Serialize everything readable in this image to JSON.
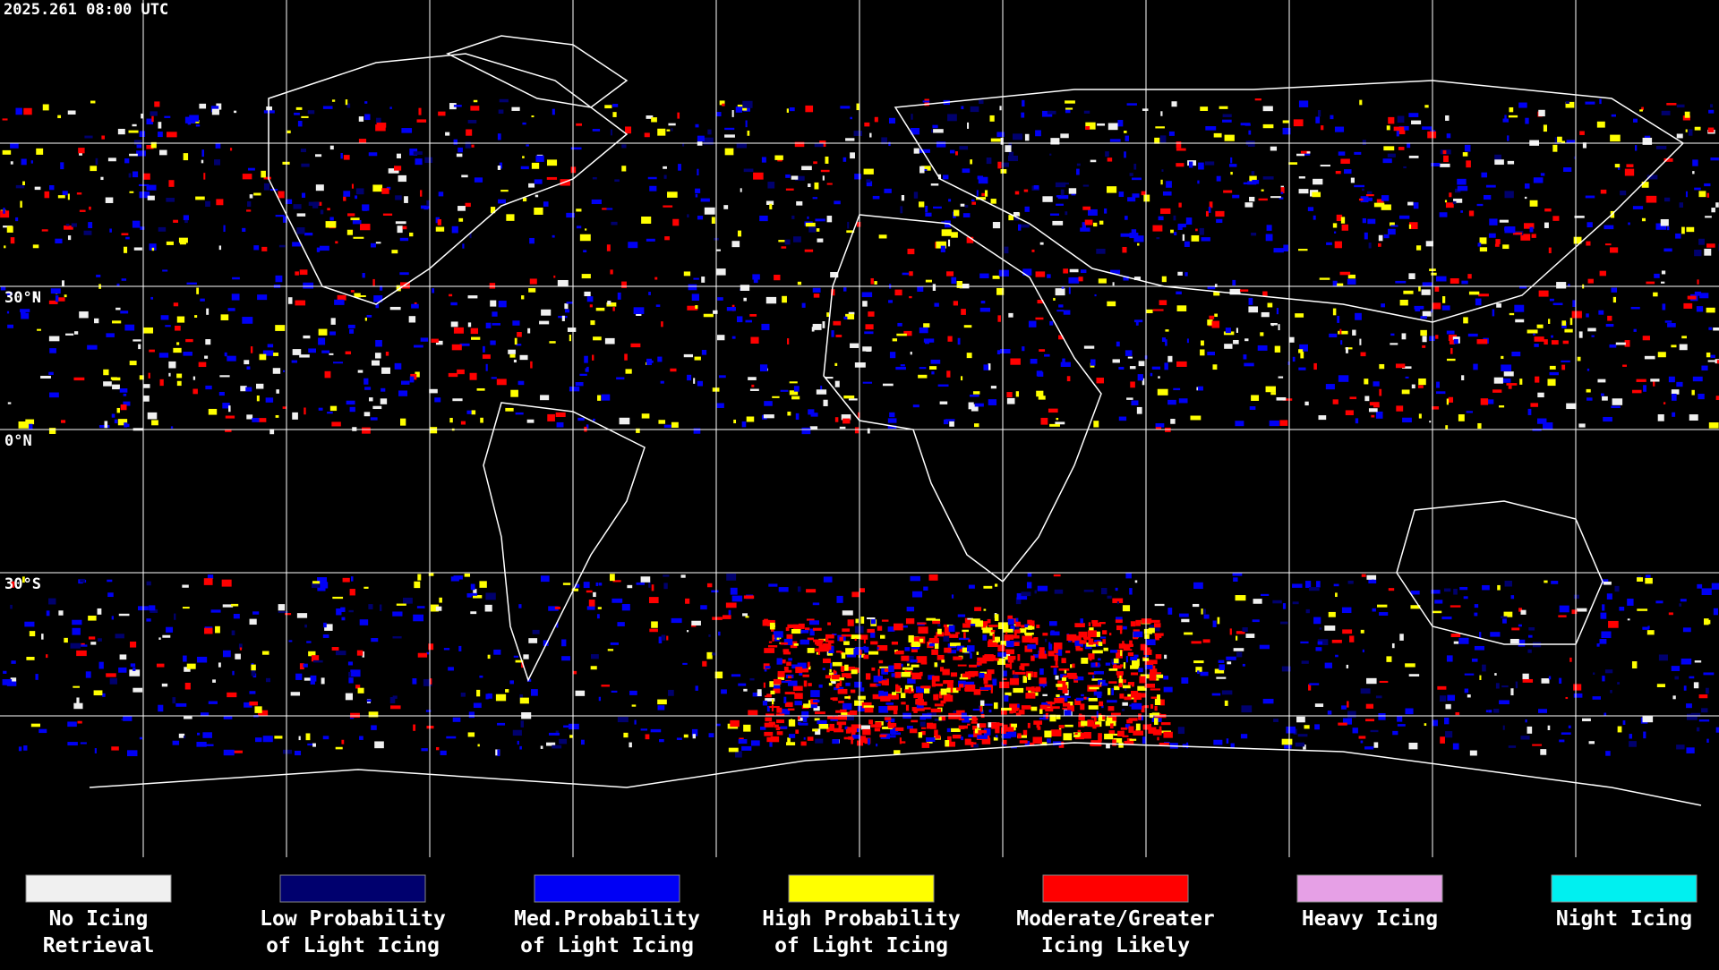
{
  "timestamp": "2025.261 08:00 UTC",
  "latitude_labels": [
    "30°N",
    "0°N",
    "30°S"
  ],
  "legend": [
    {
      "color": "#f0f0f0",
      "lines": [
        "No Icing",
        "Retrieval"
      ]
    },
    {
      "color": "#00006e",
      "lines": [
        "Low Probability",
        "of Light Icing"
      ]
    },
    {
      "color": "#0000f5",
      "lines": [
        "Med.Probability",
        "of Light Icing"
      ]
    },
    {
      "color": "#ffff00",
      "lines": [
        "High Probability",
        "of Light Icing"
      ]
    },
    {
      "color": "#ff0000",
      "lines": [
        "Moderate/Greater",
        "Icing Likely"
      ]
    },
    {
      "color": "#e6a0e6",
      "lines": [
        "Heavy Icing"
      ]
    },
    {
      "color": "#00f0f0",
      "lines": [
        "Night Icing"
      ]
    }
  ]
}
